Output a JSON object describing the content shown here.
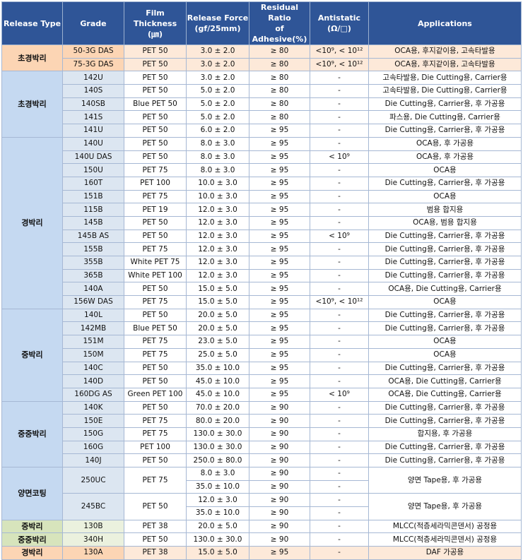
{
  "table": {
    "header": [
      "Release Type",
      "Grade",
      "Film Thickness\n(㎛)",
      "Release Force\n(gf/25mm)",
      "Residual Ratio\nof Adhesive(%)",
      "Antistatic\n(Ω/□)",
      "Applications"
    ],
    "groups": [
      {
        "release_type": "초경박리",
        "color": "#fcd5b4",
        "grade_color": "#fcd5b4",
        "row_color": "#fde9d9",
        "rows": [
          {
            "grade": "50-3G DAS",
            "film": "PET 50",
            "force": "3.0 ± 2.0",
            "residual": "≥ 80",
            "antistatic": "<10⁹, < 10¹²",
            "applications": "OCA용, 후지같이용, 고속타발용"
          },
          {
            "grade": "75-3G DAS",
            "film": "PET 50",
            "force": "3.0 ± 2.0",
            "residual": "≥ 80",
            "antistatic": "<10⁹, < 10¹²",
            "applications": "OCA용, 후지같이용, 고속타발용"
          }
        ]
      },
      {
        "release_type": "초경박리",
        "color": "#c5d9f1",
        "grade_color": "#dce6f1",
        "row_color": "#ffffff",
        "rows": [
          {
            "grade": "142U",
            "film": "PET 50",
            "force": "3.0 ± 2.0",
            "residual": "≥ 80",
            "antistatic": "-",
            "applications": "고속타발용, Die Cutting용, Carrier용"
          },
          {
            "grade": "140S",
            "film": "PET 50",
            "force": "5.0 ± 2.0",
            "residual": "≥ 80",
            "antistatic": "-",
            "applications": "고속타발용, Die Cutting용, Carrier용"
          },
          {
            "grade": "140SB",
            "film": "Blue PET 50",
            "force": "5.0 ± 2.0",
            "residual": "≥ 80",
            "antistatic": "-",
            "applications": "Die Cutting용, Carrier용, 후 가공용"
          },
          {
            "grade": "141S",
            "film": "PET 50",
            "force": "5.0 ± 2.0",
            "residual": "≥ 80",
            "antistatic": "-",
            "applications": "파스용, Die Cutting용, Carrier용"
          },
          {
            "grade": "141U",
            "film": "PET 50",
            "force": "6.0 ± 2.0",
            "residual": "≥ 95",
            "antistatic": "-",
            "applications": "Die Cutting용, Carrier용, 후 가공용"
          }
        ]
      },
      {
        "release_type": "경박리",
        "color": "#c5d9f1",
        "grade_color": "#dce6f1",
        "row_color": "#ffffff",
        "rows": [
          {
            "grade": "140U",
            "film": "PET 50",
            "force": "8.0 ± 3.0",
            "residual": "≥ 95",
            "antistatic": "-",
            "applications": "OCA용, 후 가공용"
          },
          {
            "grade": "140U DAS",
            "film": "PET 50",
            "force": "8.0 ± 3.0",
            "residual": "≥ 95",
            "antistatic": "< 10⁹",
            "applications": "OCA용, 후 가공용"
          },
          {
            "grade": "150U",
            "film": "PET 75",
            "force": "8.0 ± 3.0",
            "residual": "≥ 95",
            "antistatic": "-",
            "applications": "OCA용"
          },
          {
            "grade": "160T",
            "film": "PET 100",
            "force": "10.0 ± 3.0",
            "residual": "≥ 95",
            "antistatic": "-",
            "applications": "Die Cutting용, Carrier용, 후 가공용"
          },
          {
            "grade": "151B",
            "film": "PET 75",
            "force": "10.0 ± 3.0",
            "residual": "≥ 95",
            "antistatic": "-",
            "applications": "OCA용"
          },
          {
            "grade": "115B",
            "film": "PET 19",
            "force": "12.0 ± 3.0",
            "residual": "≥ 95",
            "antistatic": "-",
            "applications": "범용 합지용"
          },
          {
            "grade": "145B",
            "film": "PET 50",
            "force": "12.0 ± 3.0",
            "residual": "≥ 95",
            "antistatic": "-",
            "applications": "OCA용, 범용 합지용"
          },
          {
            "grade": "145B AS",
            "film": "PET 50",
            "force": "12.0 ± 3.0",
            "residual": "≥ 95",
            "antistatic": "< 10⁹",
            "applications": "Die Cutting용, Carrier용, 후 가공용"
          },
          {
            "grade": "155B",
            "film": "PET 75",
            "force": "12.0 ± 3.0",
            "residual": "≥ 95",
            "antistatic": "-",
            "applications": "Die Cutting용, Carrier용, 후 가공용"
          },
          {
            "grade": "355B",
            "film": "White PET 75",
            "force": "12.0 ± 3.0",
            "residual": "≥ 95",
            "antistatic": "-",
            "applications": "Die Cutting용, Carrier용, 후 가공용"
          },
          {
            "grade": "365B",
            "film": "White PET 100",
            "force": "12.0 ± 3.0",
            "residual": "≥ 95",
            "antistatic": "-",
            "applications": "Die Cutting용, Carrier용, 후 가공용"
          },
          {
            "grade": "140A",
            "film": "PET 50",
            "force": "15.0 ± 5.0",
            "residual": "≥ 95",
            "antistatic": "-",
            "applications": "OCA용, Die Cutting용, Carrier용"
          },
          {
            "grade": "156W DAS",
            "film": "PET 75",
            "force": "15.0 ± 5.0",
            "residual": "≥ 95",
            "antistatic": "<10⁹, < 10¹²",
            "applications": "OCA용"
          }
        ]
      },
      {
        "release_type": "중박리",
        "color": "#c5d9f1",
        "grade_color": "#dce6f1",
        "row_color": "#ffffff",
        "rows": [
          {
            "grade": "140L",
            "film": "PET 50",
            "force": "20.0 ± 5.0",
            "residual": "≥ 95",
            "antistatic": "-",
            "applications": "Die Cutting용, Carrier용, 후 가공용"
          },
          {
            "grade": "142MB",
            "film": "Blue PET 50",
            "force": "20.0 ± 5.0",
            "residual": "≥ 95",
            "antistatic": "-",
            "applications": "Die Cutting용, Carrier용, 후 가공용"
          },
          {
            "grade": "151M",
            "film": "PET 75",
            "force": "23.0 ± 5.0",
            "residual": "≥ 95",
            "antistatic": "-",
            "applications": "OCA용"
          },
          {
            "grade": "150M",
            "film": "PET 75",
            "force": "25.0 ± 5.0",
            "residual": "≥ 95",
            "antistatic": "-",
            "applications": "OCA용"
          },
          {
            "grade": "140C",
            "film": "PET 50",
            "force": "35.0 ± 10.0",
            "residual": "≥ 95",
            "antistatic": "-",
            "applications": "Die Cutting용, Carrier용, 후 가공용"
          },
          {
            "grade": "140D",
            "film": "PET 50",
            "force": "45.0 ± 10.0",
            "residual": "≥ 95",
            "antistatic": "-",
            "applications": "OCA용, Die Cutting용, Carrier용"
          },
          {
            "grade": "160DG AS",
            "film": "Green PET 100",
            "force": "45.0 ± 10.0",
            "residual": "≥ 95",
            "antistatic": "< 10⁹",
            "applications": "OCA용, Die Cutting용, Carrier용"
          }
        ]
      },
      {
        "release_type": "중중박리",
        "color": "#c5d9f1",
        "grade_color": "#dce6f1",
        "row_color": "#ffffff",
        "rows": [
          {
            "grade": "140K",
            "film": "PET 50",
            "force": "70.0 ± 20.0",
            "residual": "≥ 90",
            "antistatic": "-",
            "applications": "Die Cutting용, Carrier용, 후 가공용"
          },
          {
            "grade": "150E",
            "film": "PET 75",
            "force": "80.0 ± 20.0",
            "residual": "≥ 90",
            "antistatic": "-",
            "applications": "Die Cutting용, Carrier용, 후 가공용"
          },
          {
            "grade": "150G",
            "film": "PET 75",
            "force": "130.0 ± 30.0",
            "residual": "≥ 90",
            "antistatic": "-",
            "applications": "합지용, 후 가공용"
          },
          {
            "grade": "160G",
            "film": "PET 100",
            "force": "130.0 ± 30.0",
            "residual": "≥ 90",
            "antistatic": "-",
            "applications": "Die Cutting용, Carrier용, 후 가공용"
          },
          {
            "grade": "140J",
            "film": "PET 50",
            "force": "250.0 ± 80.0",
            "residual": "≥ 90",
            "antistatic": "-",
            "applications": "Die Cutting용, Carrier용, 후 가공용"
          }
        ]
      },
      {
        "release_type": "양면코팅",
        "color": "#c5d9f1",
        "grade_color": "#dce6f1",
        "row_color": "#ffffff",
        "rows": [
          {
            "grade": "250UC",
            "film": "PET 75",
            "measurements": [
              [
                "8.0 ± 3.0",
                "≥ 90",
                "-"
              ],
              [
                "35.0 ± 10.0",
                "≥ 90",
                "-"
              ]
            ],
            "applications": "양면 Tape용, 후 가공용"
          },
          {
            "grade": "245BC",
            "film": "PET 50",
            "measurements": [
              [
                "12.0 ± 3.0",
                "≥ 90",
                "-"
              ],
              [
                "35.0 ± 10.0",
                "≥ 90",
                "-"
              ]
            ],
            "applications": "양면 Tape용, 후 가공용"
          }
        ]
      },
      {
        "release_type": "중박리",
        "color": "#d7e4bc",
        "grade_color": "#ebf1de",
        "row_color": "#ffffff",
        "rows": [
          {
            "grade": "130B",
            "film": "PET 38",
            "force": "20.0 ± 5.0",
            "residual": "≥ 90",
            "antistatic": "-",
            "applications": "MLCC(적층세라믹콘덴서) 공정용"
          }
        ]
      },
      {
        "release_type": "중중박리",
        "color": "#d7e4bc",
        "grade_color": "#ebf1de",
        "row_color": "#ffffff",
        "rows": [
          {
            "grade": "340H",
            "film": "PET 50",
            "force": "130.0 ± 30.0",
            "residual": "≥ 90",
            "antistatic": "-",
            "applications": "MLCC(적층세라믹콘덴서) 공정용"
          }
        ]
      },
      {
        "release_type": "경박리",
        "color": "#fcd5b4",
        "grade_color": "#fcd5b4",
        "row_color": "#fde9d9",
        "rows": [
          {
            "grade": "130A",
            "film": "PET 38",
            "force": "15.0 ± 5.0",
            "residual": "≥ 95",
            "antistatic": "-",
            "applications": "DAF 가공용"
          }
        ]
      }
    ]
  }
}
